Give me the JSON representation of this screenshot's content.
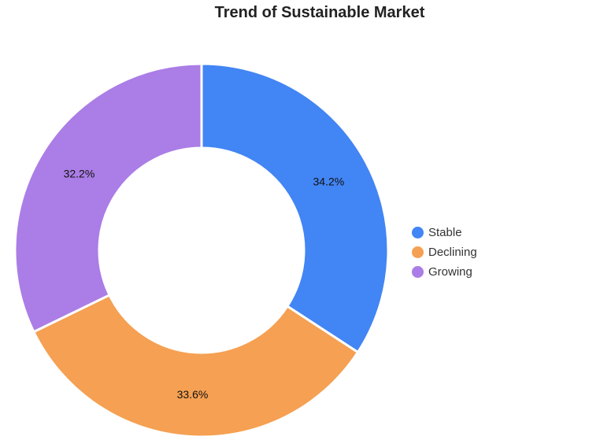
{
  "chart_data": {
    "type": "pie",
    "variant": "donut",
    "title": "Trend of Sustainable Market",
    "categories": [
      "Stable",
      "Declining",
      "Growing"
    ],
    "values": [
      34.2,
      33.6,
      32.2
    ],
    "labels": [
      "34.2%",
      "33.6%",
      "32.2%"
    ],
    "colors": [
      "#4285f4",
      "#f5a052",
      "#ab7de6"
    ],
    "legend_position": "right",
    "start_angle": "12 o'clock, clockwise"
  },
  "title": "Trend of Sustainable Market",
  "legend": [
    {
      "label": "Stable",
      "color": "#4285f4"
    },
    {
      "label": "Declining",
      "color": "#f5a052"
    },
    {
      "label": "Growing",
      "color": "#ab7de6"
    }
  ]
}
